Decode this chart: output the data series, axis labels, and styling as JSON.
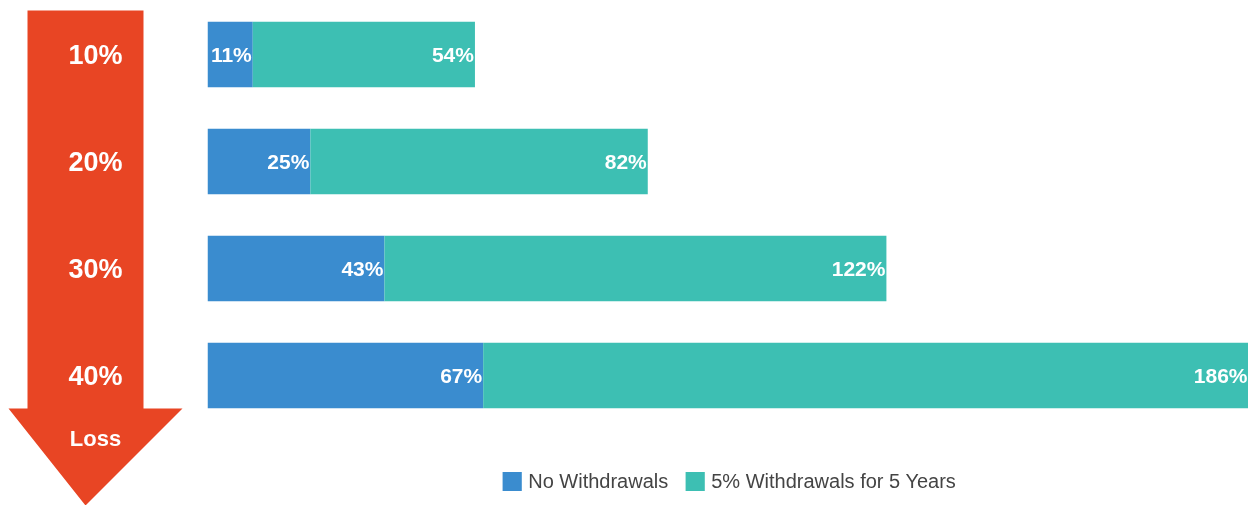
{
  "chart_data": {
    "type": "bar",
    "orientation": "horizontal",
    "stacked": true,
    "ylabel": "Loss",
    "categories": [
      "10%",
      "20%",
      "30%",
      "40%"
    ],
    "legend": "bottom",
    "series": [
      {
        "name": "No Withdrawals",
        "color": "#3a8ccf",
        "values": [
          11,
          25,
          43,
          67
        ],
        "value_labels": [
          "11%",
          "25%",
          "43%",
          "67%"
        ]
      },
      {
        "name": "5% Withdrawals for 5 Years",
        "color": "#3dbfb3",
        "values": [
          54,
          82,
          122,
          186
        ],
        "value_labels": [
          "54%",
          "82%",
          "122%",
          "186%"
        ]
      }
    ]
  }
}
